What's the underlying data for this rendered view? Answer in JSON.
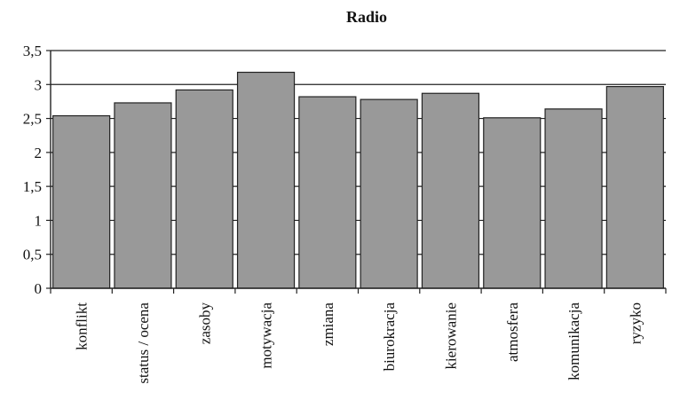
{
  "chart_data": {
    "type": "bar",
    "title": "Radio",
    "xlabel": "",
    "ylabel": "",
    "categories": [
      "konflikt",
      "status / ocena",
      "zasoby",
      "motywacja",
      "zmiana",
      "biurokracja",
      "kierowanie",
      "atmosfera",
      "komunikacja",
      "ryzyko"
    ],
    "values": [
      2.54,
      2.73,
      2.92,
      3.18,
      2.82,
      2.78,
      2.87,
      2.51,
      2.64,
      2.97
    ],
    "ylim": [
      0,
      3.5
    ],
    "yticks": [
      0,
      0.5,
      1,
      1.5,
      2,
      2.5,
      3,
      3.5
    ],
    "ytick_labels": [
      "0",
      "0,5",
      "1",
      "1,5",
      "2",
      "2,5",
      "3",
      "3,5"
    ],
    "grid": true,
    "legend": "none",
    "colors": {
      "bar_fill": "#999999",
      "bar_stroke": "#222222",
      "axis": "#222222",
      "grid": "#222222"
    }
  }
}
